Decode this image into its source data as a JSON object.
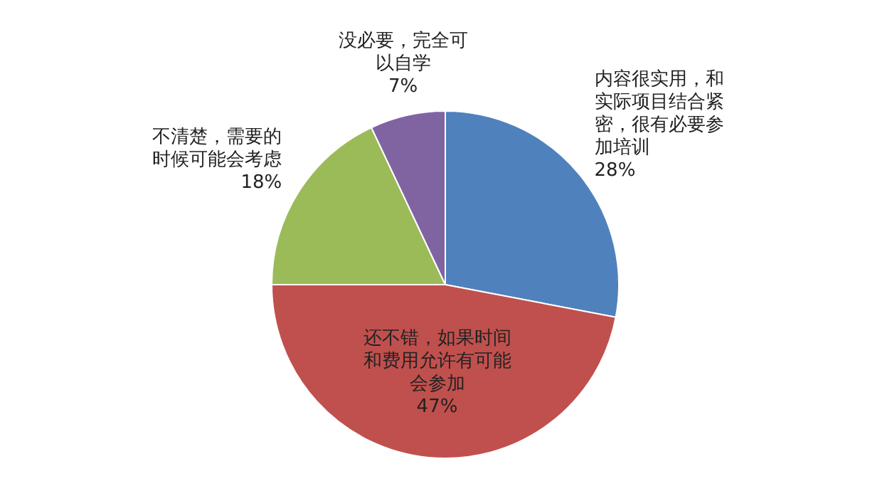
{
  "chart_data": {
    "type": "pie",
    "categories": [
      "内容很实用，和实际项目结合紧密，很有必要参加培训",
      "还不错，如果时间和费用允许有可能会参加",
      "不清楚，需要的时候可能会考虑",
      "没必要，完全可以自学"
    ],
    "values": [
      28,
      47,
      18,
      7
    ],
    "value_labels": [
      "28%",
      "47%",
      "18%",
      "7%"
    ],
    "colors": [
      "#4f81bd",
      "#c0504d",
      "#9bbb59",
      "#8064a2"
    ]
  }
}
